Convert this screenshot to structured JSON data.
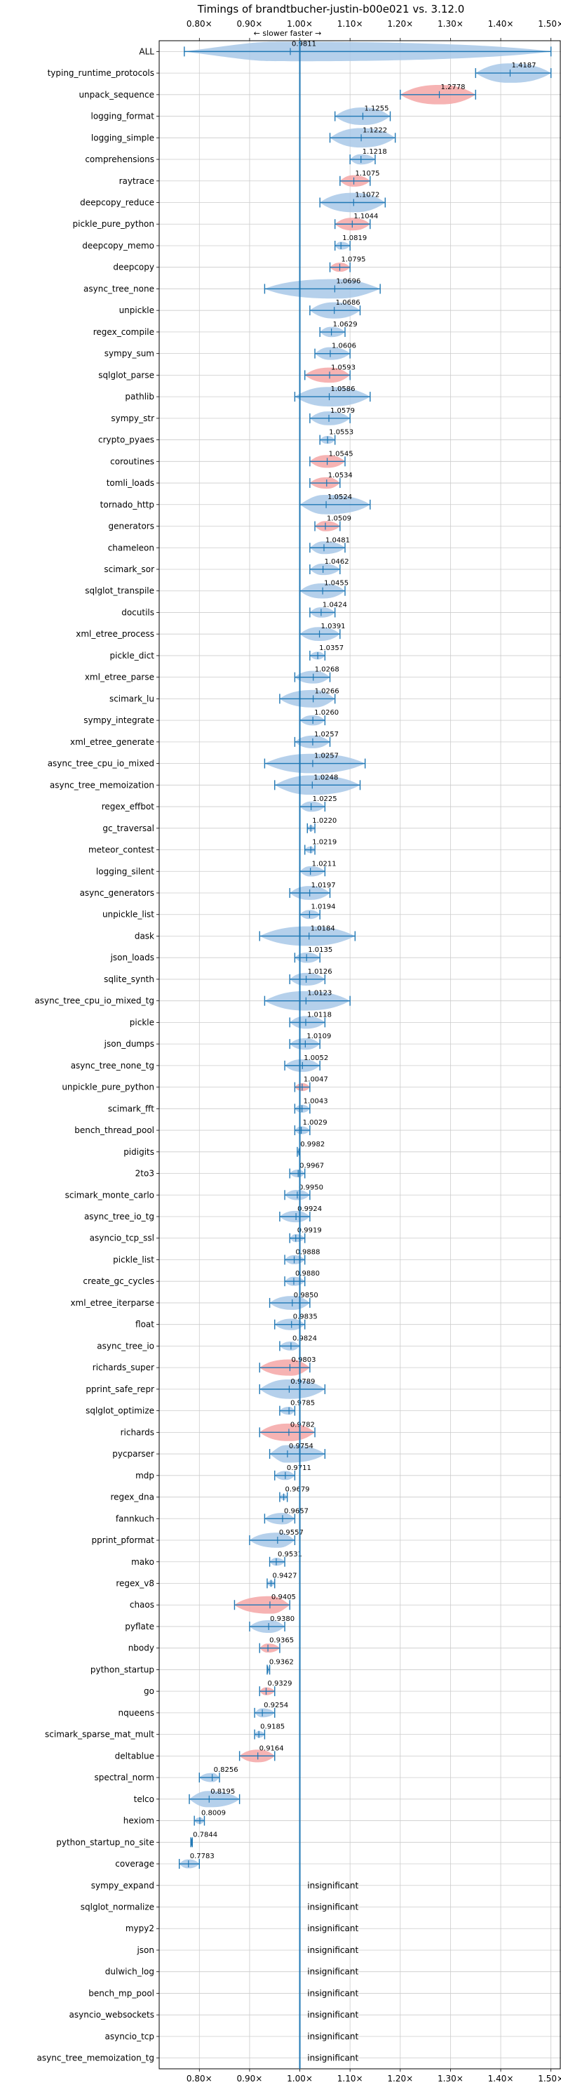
{
  "chart_data": {
    "type": "violin",
    "title": "Timings of brandtbucher-justin-b00e021 vs. 3.12.0",
    "subtitle": "← slower   faster →",
    "xlabel": "",
    "ylabel": "",
    "xlim": [
      0.72,
      1.52
    ],
    "x_ticks": [
      0.8,
      0.9,
      1.0,
      1.1,
      1.2,
      1.3,
      1.4,
      1.5
    ],
    "x_tick_labels": [
      "0.80×",
      "0.90×",
      "1.00×",
      "1.10×",
      "1.20×",
      "1.30×",
      "1.40×",
      "1.50×"
    ],
    "grid": true,
    "reference_line": 1.0,
    "insignificant_label": "insignificant",
    "colors": {
      "violin": "#a8c8e8",
      "highlight": "#f4a6a6",
      "line": "#1f77b4",
      "grid": "#cccccc",
      "text": "#000000"
    },
    "benchmarks": [
      {
        "name": "ALL",
        "value": 0.9811,
        "label": "0.9811",
        "lo": 0.77,
        "hi": 1.5,
        "highlight": false
      },
      {
        "name": "typing_runtime_protocols",
        "value": 1.4187,
        "label": "1.4187",
        "lo": 1.35,
        "hi": 1.5,
        "highlight": false
      },
      {
        "name": "unpack_sequence",
        "value": 1.2778,
        "label": "1.2778",
        "lo": 1.2,
        "hi": 1.35,
        "highlight": true
      },
      {
        "name": "logging_format",
        "value": 1.1255,
        "label": "1.1255",
        "lo": 1.07,
        "hi": 1.18,
        "highlight": false
      },
      {
        "name": "logging_simple",
        "value": 1.1222,
        "label": "1.1222",
        "lo": 1.06,
        "hi": 1.19,
        "highlight": false
      },
      {
        "name": "comprehensions",
        "value": 1.1218,
        "label": "1.1218",
        "lo": 1.1,
        "hi": 1.15,
        "highlight": false
      },
      {
        "name": "raytrace",
        "value": 1.1075,
        "label": "1.1075",
        "lo": 1.08,
        "hi": 1.14,
        "highlight": true
      },
      {
        "name": "deepcopy_reduce",
        "value": 1.1072,
        "label": "1.1072",
        "lo": 1.04,
        "hi": 1.17,
        "highlight": false
      },
      {
        "name": "pickle_pure_python",
        "value": 1.1044,
        "label": "1.1044",
        "lo": 1.07,
        "hi": 1.14,
        "highlight": true
      },
      {
        "name": "deepcopy_memo",
        "value": 1.0819,
        "label": "1.0819",
        "lo": 1.07,
        "hi": 1.1,
        "highlight": false
      },
      {
        "name": "deepcopy",
        "value": 1.0795,
        "label": "1.0795",
        "lo": 1.06,
        "hi": 1.1,
        "highlight": true
      },
      {
        "name": "async_tree_none",
        "value": 1.0696,
        "label": "1.0696",
        "lo": 0.93,
        "hi": 1.16,
        "highlight": false
      },
      {
        "name": "unpickle",
        "value": 1.0686,
        "label": "1.0686",
        "lo": 1.02,
        "hi": 1.12,
        "highlight": false
      },
      {
        "name": "regex_compile",
        "value": 1.0629,
        "label": "1.0629",
        "lo": 1.04,
        "hi": 1.09,
        "highlight": false
      },
      {
        "name": "sympy_sum",
        "value": 1.0606,
        "label": "1.0606",
        "lo": 1.03,
        "hi": 1.1,
        "highlight": false
      },
      {
        "name": "sqlglot_parse",
        "value": 1.0593,
        "label": "1.0593",
        "lo": 1.01,
        "hi": 1.1,
        "highlight": true
      },
      {
        "name": "pathlib",
        "value": 1.0586,
        "label": "1.0586",
        "lo": 0.99,
        "hi": 1.14,
        "highlight": false
      },
      {
        "name": "sympy_str",
        "value": 1.0579,
        "label": "1.0579",
        "lo": 1.02,
        "hi": 1.1,
        "highlight": false
      },
      {
        "name": "crypto_pyaes",
        "value": 1.0553,
        "label": "1.0553",
        "lo": 1.04,
        "hi": 1.07,
        "highlight": false
      },
      {
        "name": "coroutines",
        "value": 1.0545,
        "label": "1.0545",
        "lo": 1.02,
        "hi": 1.09,
        "highlight": true
      },
      {
        "name": "tomli_loads",
        "value": 1.0534,
        "label": "1.0534",
        "lo": 1.02,
        "hi": 1.08,
        "highlight": true
      },
      {
        "name": "tornado_http",
        "value": 1.0524,
        "label": "1.0524",
        "lo": 1.0,
        "hi": 1.14,
        "highlight": false
      },
      {
        "name": "generators",
        "value": 1.0509,
        "label": "1.0509",
        "lo": 1.03,
        "hi": 1.08,
        "highlight": true
      },
      {
        "name": "chameleon",
        "value": 1.0481,
        "label": "1.0481",
        "lo": 1.02,
        "hi": 1.09,
        "highlight": false
      },
      {
        "name": "scimark_sor",
        "value": 1.0462,
        "label": "1.0462",
        "lo": 1.02,
        "hi": 1.08,
        "highlight": false
      },
      {
        "name": "sqlglot_transpile",
        "value": 1.0455,
        "label": "1.0455",
        "lo": 1.0,
        "hi": 1.09,
        "highlight": false
      },
      {
        "name": "docutils",
        "value": 1.0424,
        "label": "1.0424",
        "lo": 1.02,
        "hi": 1.07,
        "highlight": false
      },
      {
        "name": "xml_etree_process",
        "value": 1.0391,
        "label": "1.0391",
        "lo": 1.0,
        "hi": 1.08,
        "highlight": false
      },
      {
        "name": "pickle_dict",
        "value": 1.0357,
        "label": "1.0357",
        "lo": 1.02,
        "hi": 1.05,
        "highlight": false
      },
      {
        "name": "xml_etree_parse",
        "value": 1.0268,
        "label": "1.0268",
        "lo": 0.99,
        "hi": 1.06,
        "highlight": false
      },
      {
        "name": "scimark_lu",
        "value": 1.0266,
        "label": "1.0266",
        "lo": 0.96,
        "hi": 1.07,
        "highlight": false
      },
      {
        "name": "sympy_integrate",
        "value": 1.026,
        "label": "1.0260",
        "lo": 1.0,
        "hi": 1.05,
        "highlight": false
      },
      {
        "name": "xml_etree_generate",
        "value": 1.0257,
        "label": "1.0257",
        "lo": 0.99,
        "hi": 1.06,
        "highlight": false
      },
      {
        "name": "async_tree_cpu_io_mixed",
        "value": 1.0257,
        "label": "1.0257",
        "lo": 0.93,
        "hi": 1.13,
        "highlight": false
      },
      {
        "name": "async_tree_memoization",
        "value": 1.0248,
        "label": "1.0248",
        "lo": 0.95,
        "hi": 1.12,
        "highlight": false
      },
      {
        "name": "regex_effbot",
        "value": 1.0225,
        "label": "1.0225",
        "lo": 1.0,
        "hi": 1.05,
        "highlight": false
      },
      {
        "name": "gc_traversal",
        "value": 1.022,
        "label": "1.0220",
        "lo": 1.015,
        "hi": 1.03,
        "highlight": false
      },
      {
        "name": "meteor_contest",
        "value": 1.0219,
        "label": "1.0219",
        "lo": 1.01,
        "hi": 1.03,
        "highlight": false
      },
      {
        "name": "logging_silent",
        "value": 1.0211,
        "label": "1.0211",
        "lo": 1.0,
        "hi": 1.05,
        "highlight": false
      },
      {
        "name": "async_generators",
        "value": 1.0197,
        "label": "1.0197",
        "lo": 0.98,
        "hi": 1.06,
        "highlight": false
      },
      {
        "name": "unpickle_list",
        "value": 1.0194,
        "label": "1.0194",
        "lo": 1.0,
        "hi": 1.04,
        "highlight": false
      },
      {
        "name": "dask",
        "value": 1.0184,
        "label": "1.0184",
        "lo": 0.92,
        "hi": 1.11,
        "highlight": false
      },
      {
        "name": "json_loads",
        "value": 1.0135,
        "label": "1.0135",
        "lo": 0.99,
        "hi": 1.04,
        "highlight": false
      },
      {
        "name": "sqlite_synth",
        "value": 1.0126,
        "label": "1.0126",
        "lo": 0.98,
        "hi": 1.05,
        "highlight": false
      },
      {
        "name": "async_tree_cpu_io_mixed_tg",
        "value": 1.0123,
        "label": "1.0123",
        "lo": 0.93,
        "hi": 1.1,
        "highlight": false
      },
      {
        "name": "pickle",
        "value": 1.0118,
        "label": "1.0118",
        "lo": 0.98,
        "hi": 1.05,
        "highlight": false
      },
      {
        "name": "json_dumps",
        "value": 1.0109,
        "label": "1.0109",
        "lo": 0.98,
        "hi": 1.04,
        "highlight": false
      },
      {
        "name": "async_tree_none_tg",
        "value": 1.0052,
        "label": "1.0052",
        "lo": 0.97,
        "hi": 1.04,
        "highlight": false
      },
      {
        "name": "unpickle_pure_python",
        "value": 1.0047,
        "label": "1.0047",
        "lo": 0.99,
        "hi": 1.02,
        "highlight": true
      },
      {
        "name": "scimark_fft",
        "value": 1.0043,
        "label": "1.0043",
        "lo": 0.99,
        "hi": 1.02,
        "highlight": false
      },
      {
        "name": "bench_thread_pool",
        "value": 1.0029,
        "label": "1.0029",
        "lo": 0.99,
        "hi": 1.02,
        "highlight": false
      },
      {
        "name": "pidigits",
        "value": 0.9982,
        "label": "0.9982",
        "lo": 0.995,
        "hi": 1.0,
        "highlight": false
      },
      {
        "name": "2to3",
        "value": 0.9967,
        "label": "0.9967",
        "lo": 0.98,
        "hi": 1.01,
        "highlight": false
      },
      {
        "name": "scimark_monte_carlo",
        "value": 0.995,
        "label": "0.9950",
        "lo": 0.97,
        "hi": 1.02,
        "highlight": false
      },
      {
        "name": "async_tree_io_tg",
        "value": 0.9924,
        "label": "0.9924",
        "lo": 0.96,
        "hi": 1.02,
        "highlight": false
      },
      {
        "name": "asyncio_tcp_ssl",
        "value": 0.9919,
        "label": "0.9919",
        "lo": 0.98,
        "hi": 1.01,
        "highlight": false
      },
      {
        "name": "pickle_list",
        "value": 0.9888,
        "label": "0.9888",
        "lo": 0.97,
        "hi": 1.01,
        "highlight": false
      },
      {
        "name": "create_gc_cycles",
        "value": 0.988,
        "label": "0.9880",
        "lo": 0.97,
        "hi": 1.01,
        "highlight": false
      },
      {
        "name": "xml_etree_iterparse",
        "value": 0.985,
        "label": "0.9850",
        "lo": 0.94,
        "hi": 1.02,
        "highlight": false
      },
      {
        "name": "float",
        "value": 0.9835,
        "label": "0.9835",
        "lo": 0.95,
        "hi": 1.01,
        "highlight": false
      },
      {
        "name": "async_tree_io",
        "value": 0.9824,
        "label": "0.9824",
        "lo": 0.96,
        "hi": 1.0,
        "highlight": false
      },
      {
        "name": "richards_super",
        "value": 0.9803,
        "label": "0.9803",
        "lo": 0.92,
        "hi": 1.02,
        "highlight": true
      },
      {
        "name": "pprint_safe_repr",
        "value": 0.9789,
        "label": "0.9789",
        "lo": 0.92,
        "hi": 1.05,
        "highlight": false
      },
      {
        "name": "sqlglot_optimize",
        "value": 0.9785,
        "label": "0.9785",
        "lo": 0.96,
        "hi": 0.99,
        "highlight": false
      },
      {
        "name": "richards",
        "value": 0.9782,
        "label": "0.9782",
        "lo": 0.92,
        "hi": 1.03,
        "highlight": true
      },
      {
        "name": "pycparser",
        "value": 0.9754,
        "label": "0.9754",
        "lo": 0.94,
        "hi": 1.05,
        "highlight": false
      },
      {
        "name": "mdp",
        "value": 0.9711,
        "label": "0.9711",
        "lo": 0.95,
        "hi": 0.99,
        "highlight": false
      },
      {
        "name": "regex_dna",
        "value": 0.9679,
        "label": "0.9679",
        "lo": 0.96,
        "hi": 0.975,
        "highlight": false
      },
      {
        "name": "fannkuch",
        "value": 0.9657,
        "label": "0.9657",
        "lo": 0.93,
        "hi": 0.99,
        "highlight": false
      },
      {
        "name": "pprint_pformat",
        "value": 0.9557,
        "label": "0.9557",
        "lo": 0.9,
        "hi": 0.99,
        "highlight": false
      },
      {
        "name": "mako",
        "value": 0.9531,
        "label": "0.9531",
        "lo": 0.94,
        "hi": 0.97,
        "highlight": false
      },
      {
        "name": "regex_v8",
        "value": 0.9427,
        "label": "0.9427",
        "lo": 0.935,
        "hi": 0.95,
        "highlight": false
      },
      {
        "name": "chaos",
        "value": 0.9405,
        "label": "0.9405",
        "lo": 0.87,
        "hi": 0.98,
        "highlight": true
      },
      {
        "name": "pyflate",
        "value": 0.938,
        "label": "0.9380",
        "lo": 0.9,
        "hi": 0.97,
        "highlight": false
      },
      {
        "name": "nbody",
        "value": 0.9365,
        "label": "0.9365",
        "lo": 0.92,
        "hi": 0.96,
        "highlight": true
      },
      {
        "name": "python_startup",
        "value": 0.9362,
        "label": "0.9362",
        "lo": 0.935,
        "hi": 0.94,
        "highlight": false
      },
      {
        "name": "go",
        "value": 0.9329,
        "label": "0.9329",
        "lo": 0.92,
        "hi": 0.95,
        "highlight": true
      },
      {
        "name": "nqueens",
        "value": 0.9254,
        "label": "0.9254",
        "lo": 0.91,
        "hi": 0.95,
        "highlight": false
      },
      {
        "name": "scimark_sparse_mat_mult",
        "value": 0.9185,
        "label": "0.9185",
        "lo": 0.91,
        "hi": 0.93,
        "highlight": false
      },
      {
        "name": "deltablue",
        "value": 0.9164,
        "label": "0.9164",
        "lo": 0.88,
        "hi": 0.95,
        "highlight": true
      },
      {
        "name": "spectral_norm",
        "value": 0.8256,
        "label": "0.8256",
        "lo": 0.8,
        "hi": 0.84,
        "highlight": false
      },
      {
        "name": "telco",
        "value": 0.8195,
        "label": "0.8195",
        "lo": 0.78,
        "hi": 0.88,
        "highlight": false
      },
      {
        "name": "hexiom",
        "value": 0.8009,
        "label": "0.8009",
        "lo": 0.79,
        "hi": 0.81,
        "highlight": false
      },
      {
        "name": "python_startup_no_site",
        "value": 0.7844,
        "label": "0.7844",
        "lo": 0.783,
        "hi": 0.786,
        "highlight": false
      },
      {
        "name": "coverage",
        "value": 0.7783,
        "label": "0.7783",
        "lo": 0.76,
        "hi": 0.8,
        "highlight": false
      },
      {
        "name": "sympy_expand",
        "value": null,
        "label": "",
        "lo": null,
        "hi": null,
        "highlight": false
      },
      {
        "name": "sqlglot_normalize",
        "value": null,
        "label": "",
        "lo": null,
        "hi": null,
        "highlight": false
      },
      {
        "name": "mypy2",
        "value": null,
        "label": "",
        "lo": null,
        "hi": null,
        "highlight": false
      },
      {
        "name": "json",
        "value": null,
        "label": "",
        "lo": null,
        "hi": null,
        "highlight": false
      },
      {
        "name": "dulwich_log",
        "value": null,
        "label": "",
        "lo": null,
        "hi": null,
        "highlight": false
      },
      {
        "name": "bench_mp_pool",
        "value": null,
        "label": "",
        "lo": null,
        "hi": null,
        "highlight": false
      },
      {
        "name": "asyncio_websockets",
        "value": null,
        "label": "",
        "lo": null,
        "hi": null,
        "highlight": false
      },
      {
        "name": "asyncio_tcp",
        "value": null,
        "label": "",
        "lo": null,
        "hi": null,
        "highlight": false
      },
      {
        "name": "async_tree_memoization_tg",
        "value": null,
        "label": "",
        "lo": null,
        "hi": null,
        "highlight": false
      }
    ]
  }
}
